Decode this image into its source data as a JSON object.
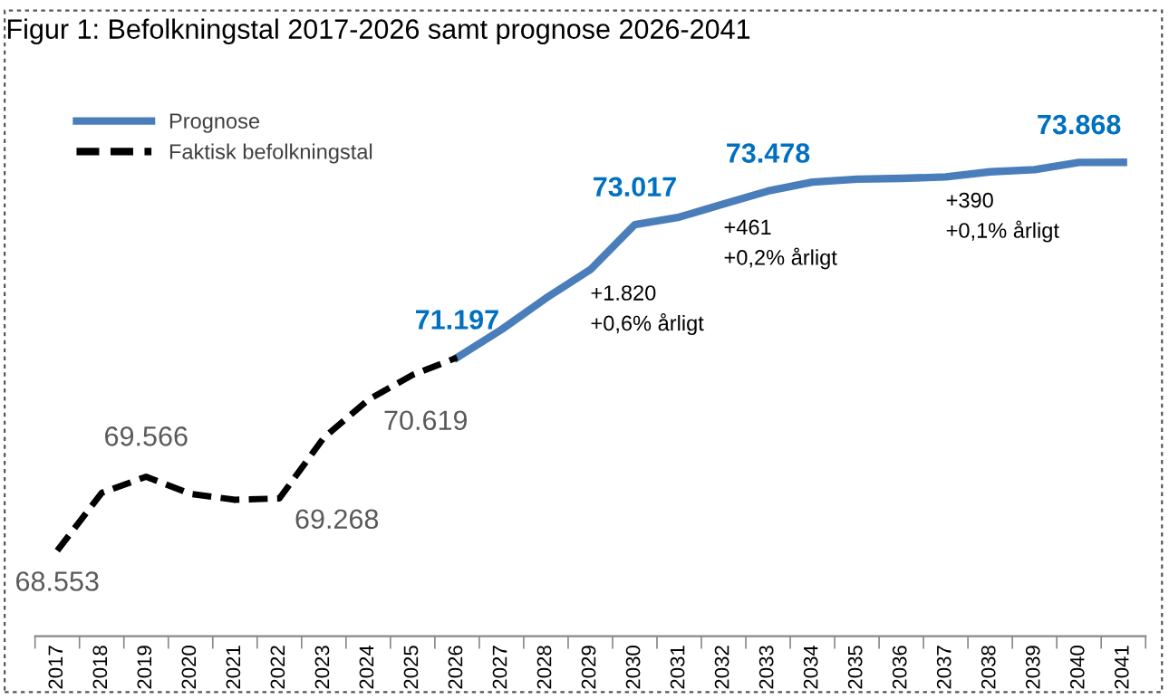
{
  "chart_data": {
    "type": "line",
    "title": "Figur 1: Befolkningstal 2017-2026 samt prognose 2026-2041",
    "categories": [
      "2017",
      "2018",
      "2019",
      "2020",
      "2021",
      "2022",
      "2023",
      "2024",
      "2025",
      "2026",
      "2027",
      "2028",
      "2029",
      "2030",
      "2031",
      "2032",
      "2033",
      "2034",
      "2035",
      "2036",
      "2037",
      "2038",
      "2039",
      "2040",
      "2041"
    ],
    "series": [
      {
        "name": "Prognose",
        "color": "#4a7ebb",
        "line_style": "solid",
        "values": [
          null,
          null,
          null,
          null,
          null,
          null,
          null,
          null,
          null,
          71197,
          71580,
          72010,
          72400,
          73017,
          73120,
          73300,
          73478,
          73600,
          73640,
          73650,
          73670,
          73740,
          73770,
          73868,
          73870
        ],
        "value_labels": [
          null,
          null,
          null,
          null,
          null,
          null,
          null,
          null,
          null,
          "71.197",
          null,
          null,
          null,
          "73.017",
          null,
          null,
          "73.478",
          null,
          null,
          null,
          null,
          null,
          null,
          "73.868",
          null
        ]
      },
      {
        "name": "Faktisk befolkningstal",
        "color": "#000000",
        "line_style": "dashed",
        "values": [
          68553,
          69345,
          69566,
          69330,
          69250,
          69268,
          70100,
          70619,
          70960,
          71197,
          null,
          null,
          null,
          null,
          null,
          null,
          null,
          null,
          null,
          null,
          null,
          null,
          null,
          null,
          null
        ],
        "value_labels": [
          "68.553",
          null,
          "69.566",
          null,
          null,
          "69.268",
          null,
          "70.619",
          null,
          null,
          null,
          null,
          null,
          null,
          null,
          null,
          null,
          null,
          null,
          null,
          null,
          null,
          null,
          null,
          null
        ]
      }
    ],
    "annotations": [
      {
        "text": "+1.820\n+0,6% årligt",
        "x": "2029",
        "y": 72400
      },
      {
        "text": "+461\n+0,2% årligt",
        "x": "2032",
        "y": 73300
      },
      {
        "text": "+390\n+0,1% årligt",
        "x": "2037",
        "y": 73670
      }
    ],
    "tick_labels": "x",
    "legend": "top left",
    "grid": false,
    "marker": "none"
  }
}
